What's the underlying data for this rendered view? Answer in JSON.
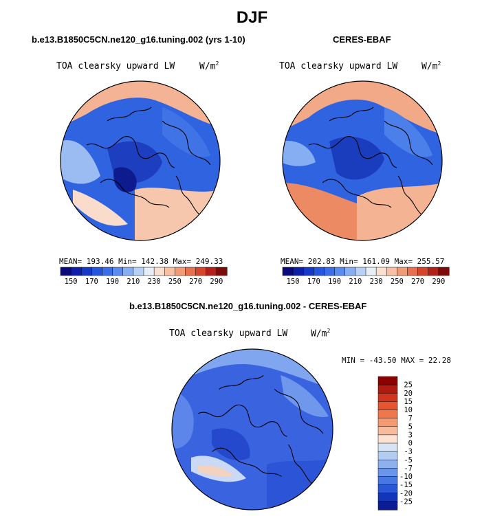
{
  "figure": {
    "title": "DJF"
  },
  "panels": [
    {
      "case_title": "b.e13.B1850C5CN.ne120_g16.tuning.002 (yrs 1-10)",
      "variable": "TOA clearsky upward LW",
      "units": "W/m",
      "units_exp": "2",
      "stats": "MEAN= 193.46  Min= 142.38  Max= 249.33"
    },
    {
      "case_title": "CERES-EBAF",
      "variable": "TOA clearsky upward LW",
      "units": "W/m",
      "units_exp": "2",
      "stats": "MEAN= 202.83  Min= 161.09  Max= 255.57"
    },
    {
      "case_title": "b.e13.B1850C5CN.ne120_g16.tuning.002 - CERES-EBAF",
      "variable": "TOA clearsky upward LW",
      "units": "W/m",
      "units_exp": "2",
      "stats": "MIN = -43.50 MAX =  22.28"
    }
  ],
  "chart_data": [
    {
      "type": "heatmap",
      "projection": "north polar stereographic",
      "colorbar": {
        "orientation": "horizontal",
        "levels": [
          150,
          160,
          170,
          180,
          190,
          200,
          210,
          220,
          230,
          240,
          250,
          260,
          270,
          280,
          290
        ],
        "tick_labels": [
          "150",
          "170",
          "190",
          "210",
          "230",
          "250",
          "270",
          "290"
        ],
        "colors": [
          "#0a0a7a",
          "#0d1fa8",
          "#1538c8",
          "#2455de",
          "#3a6ee8",
          "#5a8cef",
          "#86aff3",
          "#b7d0f6",
          "#e8eef5",
          "#fbe0d2",
          "#f7c0a4",
          "#f19a77",
          "#e8704e",
          "#d4452c",
          "#b2201a",
          "#7f0a0a"
        ]
      },
      "stats": {
        "mean": 193.46,
        "min": 142.38,
        "max": 249.33
      }
    },
    {
      "type": "heatmap",
      "projection": "north polar stereographic",
      "colorbar": {
        "orientation": "horizontal",
        "levels": [
          150,
          160,
          170,
          180,
          190,
          200,
          210,
          220,
          230,
          240,
          250,
          260,
          270,
          280,
          290
        ],
        "tick_labels": [
          "150",
          "170",
          "190",
          "210",
          "230",
          "250",
          "270",
          "290"
        ],
        "colors": [
          "#0a0a7a",
          "#0d1fa8",
          "#1538c8",
          "#2455de",
          "#3a6ee8",
          "#5a8cef",
          "#86aff3",
          "#b7d0f6",
          "#e8eef5",
          "#fbe0d2",
          "#f7c0a4",
          "#f19a77",
          "#e8704e",
          "#d4452c",
          "#b2201a",
          "#7f0a0a"
        ]
      },
      "stats": {
        "mean": 202.83,
        "min": 161.09,
        "max": 255.57
      }
    },
    {
      "type": "heatmap",
      "projection": "north polar stereographic",
      "colorbar": {
        "orientation": "vertical",
        "tick_labels": [
          "25",
          "20",
          "15",
          "10",
          "7",
          "5",
          "3",
          "0",
          "-3",
          "-5",
          "-7",
          "-10",
          "-15",
          "-20",
          "-25"
        ],
        "colors": [
          "#8b0000",
          "#b01a10",
          "#d0361f",
          "#e55532",
          "#f0764c",
          "#f59a73",
          "#f8bb9c",
          "#fbe2d2",
          "#d6e4f6",
          "#b3ccf2",
          "#8eb1ee",
          "#6b95ea",
          "#4677e2",
          "#2856d4",
          "#1336b8",
          "#0a1c96"
        ]
      },
      "stats": {
        "min": -43.5,
        "max": 22.28
      }
    }
  ]
}
